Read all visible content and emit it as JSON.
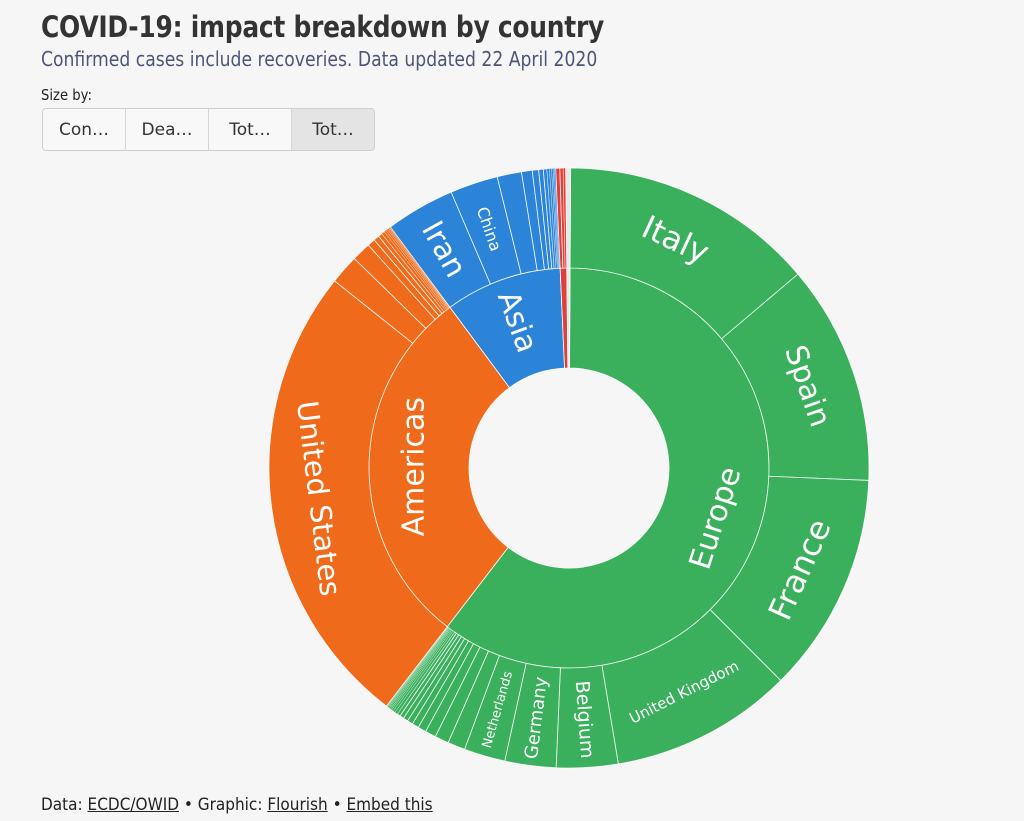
{
  "header": {
    "title": "COVID-19: impact breakdown by country",
    "subtitle": "Confirmed cases include recoveries. Data updated 22 April 2020"
  },
  "controls": {
    "size_by_label": "Size by:",
    "buttons": [
      {
        "label": "Con…",
        "selected": false
      },
      {
        "label": "Dea…",
        "selected": false
      },
      {
        "label": "Tot…",
        "selected": false
      },
      {
        "label": "Tot…",
        "selected": true
      }
    ]
  },
  "footer": {
    "data_prefix": "Data:",
    "data_link": "ECDC/OWID",
    "separator1": "•",
    "graphic_prefix": "Graphic:",
    "graphic_link": "Flourish",
    "separator2": "•",
    "embed_link": "Embed this"
  },
  "chart_data": {
    "type": "sunburst",
    "title": "COVID-19: impact breakdown by country",
    "unit": "percent of total (estimated from slice angles)",
    "start": "top, clockwise",
    "colors": {
      "Europe": "#3aaf5c",
      "Americas": "#f06a1b",
      "Asia": "#2b84d7",
      "Africa": "#e0403a",
      "Oceania": "#e8e8e8",
      "border": "#ffffff",
      "center": "#f6f6f6"
    },
    "regions": [
      {
        "name": "Europe",
        "label": "Europe",
        "share": 60.33,
        "children": [
          {
            "name": "Italy",
            "label": "Italy",
            "share": 13.72
          },
          {
            "name": "Spain",
            "label": "Spain",
            "share": 11.83
          },
          {
            "name": "France",
            "label": "France",
            "share": 11.86
          },
          {
            "name": "United Kingdom",
            "label": "United Kingdom",
            "share": 9.83
          },
          {
            "name": "Belgium",
            "label": "Belgium",
            "share": 3.31
          },
          {
            "name": "Germany",
            "label": "Germany",
            "share": 2.75
          },
          {
            "name": "Netherlands",
            "label": "Netherlands",
            "share": 2.22
          },
          {
            "name": "other-1",
            "label": "",
            "share": 0.94
          },
          {
            "name": "other-2",
            "label": "",
            "share": 0.75
          },
          {
            "name": "other-3",
            "label": "",
            "share": 0.58
          },
          {
            "name": "other-4",
            "label": "",
            "share": 0.45
          },
          {
            "name": "other-5",
            "label": "",
            "share": 0.36
          },
          {
            "name": "other-6",
            "label": "",
            "share": 0.3
          },
          {
            "name": "other-7",
            "label": "",
            "share": 0.26
          },
          {
            "name": "other-8",
            "label": "",
            "share": 0.22
          },
          {
            "name": "other-9",
            "label": "",
            "share": 0.18
          },
          {
            "name": "other-10",
            "label": "",
            "share": 0.15
          },
          {
            "name": "other-11",
            "label": "",
            "share": 0.12
          },
          {
            "name": "other-12",
            "label": "",
            "share": 0.1
          },
          {
            "name": "other-13",
            "label": "",
            "share": 0.08
          },
          {
            "name": "other-14",
            "label": "",
            "share": 0.07
          },
          {
            "name": "other-15",
            "label": "",
            "share": 0.06
          },
          {
            "name": "other-16",
            "label": "",
            "share": 0.05
          },
          {
            "name": "other-17",
            "label": "",
            "share": 0.04
          },
          {
            "name": "other-18",
            "label": "",
            "share": 0.04
          }
        ]
      },
      {
        "name": "Americas",
        "label": "Americas",
        "share": 29.44,
        "children": [
          {
            "name": "United States",
            "label": "United States",
            "share": 25.31
          },
          {
            "name": "other-1",
            "label": "",
            "share": 1.58
          },
          {
            "name": "other-2",
            "label": "",
            "share": 1.03
          },
          {
            "name": "other-3",
            "label": "",
            "share": 0.42
          },
          {
            "name": "other-4",
            "label": "",
            "share": 0.3
          },
          {
            "name": "other-5",
            "label": "",
            "share": 0.22
          },
          {
            "name": "other-6",
            "label": "",
            "share": 0.16
          },
          {
            "name": "other-7",
            "label": "",
            "share": 0.12
          },
          {
            "name": "other-8",
            "label": "",
            "share": 0.1
          },
          {
            "name": "other-9",
            "label": "",
            "share": 0.08
          },
          {
            "name": "other-10",
            "label": "",
            "share": 0.06
          },
          {
            "name": "other-11",
            "label": "",
            "share": 0.06
          }
        ]
      },
      {
        "name": "Asia",
        "label": "Asia",
        "share": 9.44,
        "children": [
          {
            "name": "Iran",
            "label": "Iran",
            "share": 3.72
          },
          {
            "name": "China",
            "label": "China",
            "share": 2.58
          },
          {
            "name": "other-1",
            "label": "",
            "share": 1.31
          },
          {
            "name": "other-2",
            "label": "",
            "share": 0.58
          },
          {
            "name": "other-3",
            "label": "",
            "share": 0.34
          },
          {
            "name": "other-4",
            "label": "",
            "share": 0.25
          },
          {
            "name": "other-5",
            "label": "",
            "share": 0.19
          },
          {
            "name": "other-6",
            "label": "",
            "share": 0.14
          },
          {
            "name": "other-7",
            "label": "",
            "share": 0.11
          },
          {
            "name": "other-8",
            "label": "",
            "share": 0.08
          },
          {
            "name": "other-9",
            "label": "",
            "share": 0.07
          },
          {
            "name": "other-10",
            "label": "",
            "share": 0.07
          }
        ]
      },
      {
        "name": "Africa",
        "label": "",
        "share": 0.53,
        "children": [
          {
            "name": "other-1",
            "label": "",
            "share": 0.22
          },
          {
            "name": "other-2",
            "label": "",
            "share": 0.18
          },
          {
            "name": "other-3",
            "label": "",
            "share": 0.13
          }
        ]
      },
      {
        "name": "Oceania",
        "label": "",
        "share": 0.26,
        "children": [
          {
            "name": "other-1",
            "label": "",
            "share": 0.26
          }
        ]
      }
    ]
  }
}
